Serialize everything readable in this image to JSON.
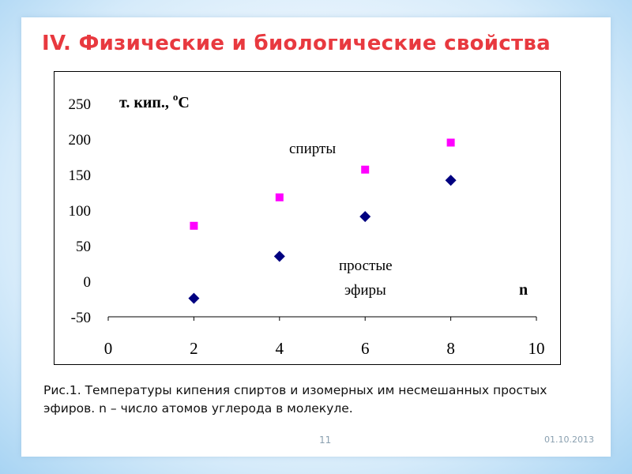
{
  "slide": {
    "title": "IV. Физические и биологические свойства",
    "caption": "Рис.1. Температуры кипения спиртов и изомерных им несмешанных простых эфиров. n – число атомов углерода в молекуле.",
    "page_number": "11",
    "date": "01.10.2013"
  },
  "colors": {
    "title": "#e8393f",
    "series_alcohols": "#ff00ff",
    "series_ethers": "#000080",
    "background_edge": "#a8d4f3"
  },
  "chart_data": {
    "type": "scatter",
    "ylabel": "т. кип., °C",
    "xlabel": "n",
    "xlim": [
      0,
      10
    ],
    "ylim": [
      -50,
      250
    ],
    "x_ticks": [
      "0",
      "2",
      "4",
      "6",
      "8",
      "10"
    ],
    "y_ticks": [
      "250",
      "200",
      "150",
      "100",
      "50",
      "0",
      "-50"
    ],
    "grid": false,
    "series": [
      {
        "name": "спирты",
        "marker": "square",
        "color": "#ff00ff",
        "x": [
          2,
          4,
          6,
          8
        ],
        "y": [
          78,
          118,
          157,
          195
        ]
      },
      {
        "name": "простые эфиры",
        "marker": "diamond",
        "color": "#000080",
        "x": [
          2,
          4,
          6,
          8
        ],
        "y": [
          -24,
          35,
          91,
          142
        ]
      }
    ],
    "annotations": {
      "alcohols_label": "спирты",
      "ethers_label_line1": "простые",
      "ethers_label_line2": "эфиры"
    }
  }
}
